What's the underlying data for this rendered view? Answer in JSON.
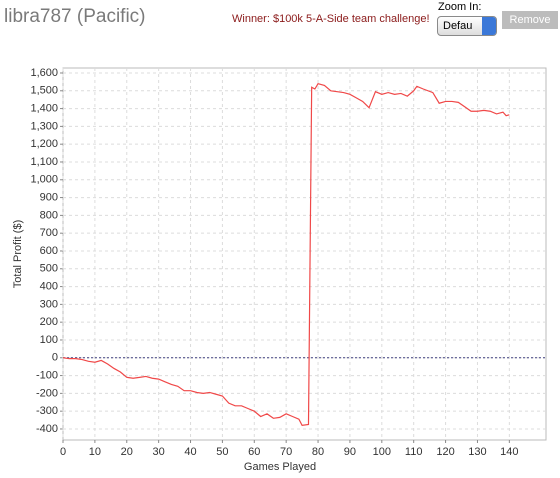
{
  "header": {
    "user": "libra787 (Pacific)",
    "announcement": "Winner: $100k 5-A-Side team challenge!",
    "zoom_label": "Zoom In:",
    "zoom_value": "Defau",
    "remove": "Remove"
  },
  "chart_data": {
    "type": "line",
    "x_label": "Games Played",
    "y_label": "Total Profit ($)",
    "x": [
      0,
      2,
      4,
      6,
      8,
      10,
      12,
      14,
      16,
      18,
      20,
      22,
      24,
      26,
      28,
      30,
      32,
      34,
      36,
      38,
      40,
      42,
      44,
      46,
      48,
      50,
      52,
      54,
      56,
      58,
      60,
      62,
      64,
      66,
      68,
      70,
      72,
      74,
      75,
      77,
      78,
      79,
      80,
      82,
      84,
      86,
      88,
      90,
      92,
      94,
      96,
      98,
      100,
      102,
      104,
      106,
      108,
      110,
      111,
      113,
      116,
      118,
      120,
      122,
      124,
      126,
      128,
      130,
      132,
      134,
      136,
      138,
      139,
      140
    ],
    "series": [
      {
        "name": "Total Profit",
        "color": "#f04848",
        "values": [
          0,
          -5,
          -5,
          -10,
          -20,
          -25,
          -15,
          -35,
          -60,
          -80,
          -110,
          -115,
          -110,
          -105,
          -115,
          -120,
          -135,
          -150,
          -160,
          -185,
          -185,
          -195,
          -200,
          -195,
          -205,
          -215,
          -255,
          -270,
          -270,
          -285,
          -300,
          -330,
          -315,
          -340,
          -335,
          -315,
          -330,
          -345,
          -380,
          -375,
          1520,
          1510,
          1540,
          1530,
          1500,
          1495,
          1490,
          1480,
          1460,
          1440,
          1405,
          1495,
          1480,
          1490,
          1480,
          1485,
          1470,
          1500,
          1525,
          1510,
          1490,
          1430,
          1440,
          1440,
          1435,
          1410,
          1385,
          1385,
          1390,
          1385,
          1370,
          1380,
          1360,
          1365
        ]
      }
    ],
    "xlim": [
      0,
      151.5
    ],
    "xticks": [
      0,
      10,
      20,
      30,
      40,
      50,
      60,
      70,
      80,
      90,
      100,
      110,
      120,
      130,
      140
    ],
    "ylim": [
      -462,
      1628
    ],
    "yticks": [
      -400,
      -300,
      -200,
      -100,
      0,
      100,
      200,
      300,
      400,
      500,
      600,
      700,
      800,
      900,
      {
        "value": 1000,
        "label": "1,000"
      },
      {
        "value": 1100,
        "label": "1,100"
      },
      {
        "value": 1200,
        "label": "1,200"
      },
      {
        "value": 1300,
        "label": "1,300"
      },
      {
        "value": 1400,
        "label": "1,400"
      },
      {
        "value": 1500,
        "label": "1,500"
      },
      {
        "value": 1600,
        "label": "1,600"
      }
    ],
    "grid": true
  }
}
